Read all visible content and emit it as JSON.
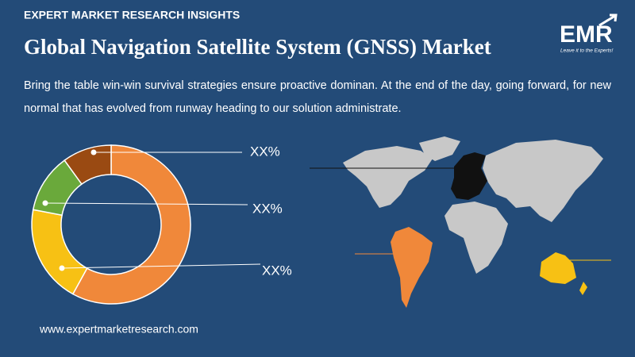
{
  "header": {
    "kicker": "EXPERT MARKET RESEARCH INSIGHTS",
    "title": "Global Navigation Satellite System (GNSS) Market",
    "description": "Bring the table win-win survival strategies ensure proactive dominan. At the end of the day, going forward, for new normal that has evolved from runway heading to our solution administrate."
  },
  "logo": {
    "text": "EMR",
    "tagline": "Leave it to the Experts!"
  },
  "chart_data": {
    "type": "donut",
    "values": [
      58,
      20,
      12,
      10
    ],
    "colors": [
      "#f0883a",
      "#f7c114",
      "#6aa93b",
      "#9a4a12"
    ],
    "annotations": [
      "XX%",
      "XX%",
      "XX%"
    ]
  },
  "footer": {
    "url": "www.expertmarketresearch.com"
  }
}
